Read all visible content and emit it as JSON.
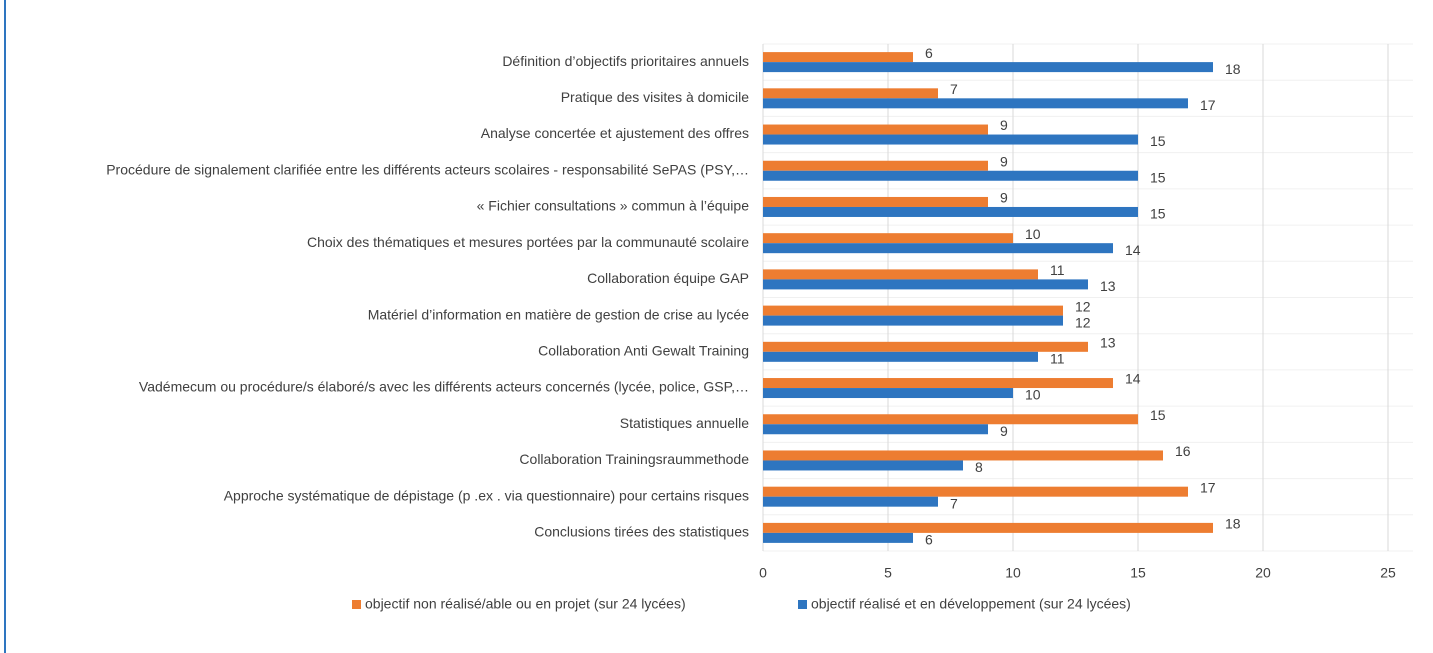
{
  "chart_data": {
    "type": "bar",
    "orientation": "horizontal",
    "categories": [
      "Définition d’objectifs prioritaires annuels",
      "Pratique des visites à domicile",
      "Analyse concertée et ajustement des offres",
      "Procédure de signalement clarifiée entre les différents acteurs scolaires - responsabilité SePAS (PSY,…",
      "« Fichier consultations » commun à l’équipe",
      "Choix des thématiques et mesures portées par la communauté scolaire",
      "Collaboration équipe GAP",
      "Matériel d’information en matière de gestion de crise au lycée",
      "Collaboration Anti Gewalt Training",
      "Vadémecum ou procédure/s élaboré/s avec les différents acteurs concernés (lycée, police, GSP,…",
      "Statistiques annuelle",
      "Collaboration Trainingsraummethode",
      "Approche systématique de dépistage (p .ex . via questionnaire) pour certains risques",
      "Conclusions tirées des statistiques"
    ],
    "series": [
      {
        "name": "objectif non réalisé/able ou en projet (sur 24 lycées)",
        "color": "#ed7d31",
        "values": [
          6,
          7,
          9,
          9,
          9,
          10,
          11,
          12,
          13,
          14,
          15,
          16,
          17,
          18
        ]
      },
      {
        "name": "objectif réalisé et en développement (sur 24 lycées)",
        "color": "#2e75c0",
        "values": [
          18,
          17,
          15,
          15,
          15,
          14,
          13,
          12,
          11,
          10,
          9,
          8,
          7,
          6
        ]
      }
    ],
    "xlim": [
      0,
      26
    ],
    "xticks": [
      0,
      5,
      10,
      15,
      20,
      25
    ],
    "grid": true,
    "legend": "bottom"
  }
}
